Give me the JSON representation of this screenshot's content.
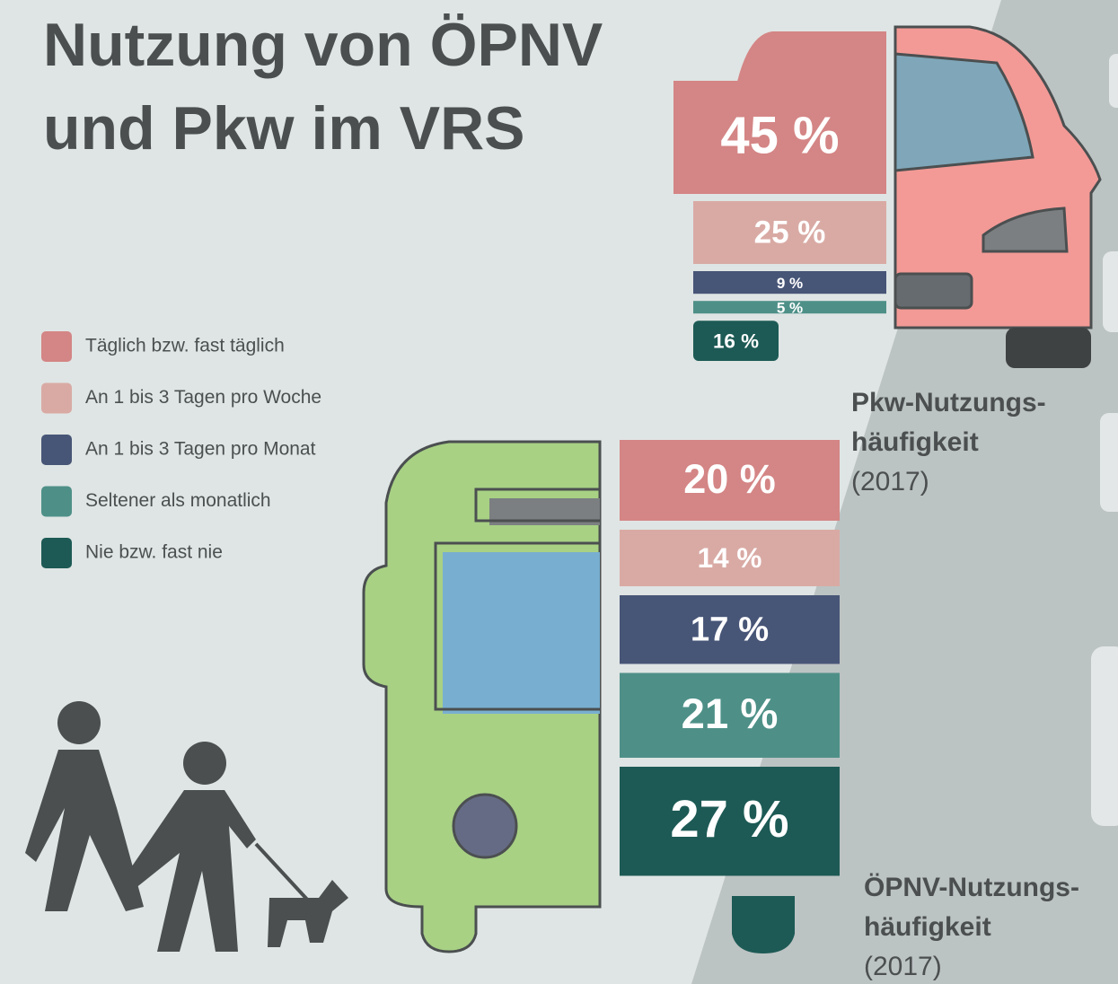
{
  "title": [
    "Nutzung von ÖPNV",
    "und Pkw im VRS"
  ],
  "legend": {
    "labels": [
      "Täglich bzw. fast täglich",
      "An 1 bis 3 Tagen pro Woche",
      "An 1 bis 3 Tagen pro Monat",
      "Seltener als monatlich",
      "Nie bzw. fast nie"
    ],
    "colors": [
      "#d48585",
      "#d9aaa4",
      "#475577",
      "#4e9088",
      "#1d5a55"
    ]
  },
  "chart_data": [
    {
      "type": "bar",
      "title_lines": [
        "Pkw-Nutzungs-",
        "häufigkeit"
      ],
      "subtitle": "(2017)",
      "values": [
        45,
        25,
        9,
        5,
        16
      ],
      "value_labels": [
        "45 %",
        "25 %",
        "9 %",
        "5 %",
        "16 %"
      ]
    },
    {
      "type": "bar",
      "title_lines": [
        "ÖPNV-Nutzungs-",
        "häufigkeit"
      ],
      "subtitle": "(2017)",
      "values": [
        20,
        14,
        17,
        21,
        27
      ],
      "value_labels": [
        "20 %",
        "14 %",
        "17 %",
        "21 %",
        "27 %"
      ]
    }
  ]
}
